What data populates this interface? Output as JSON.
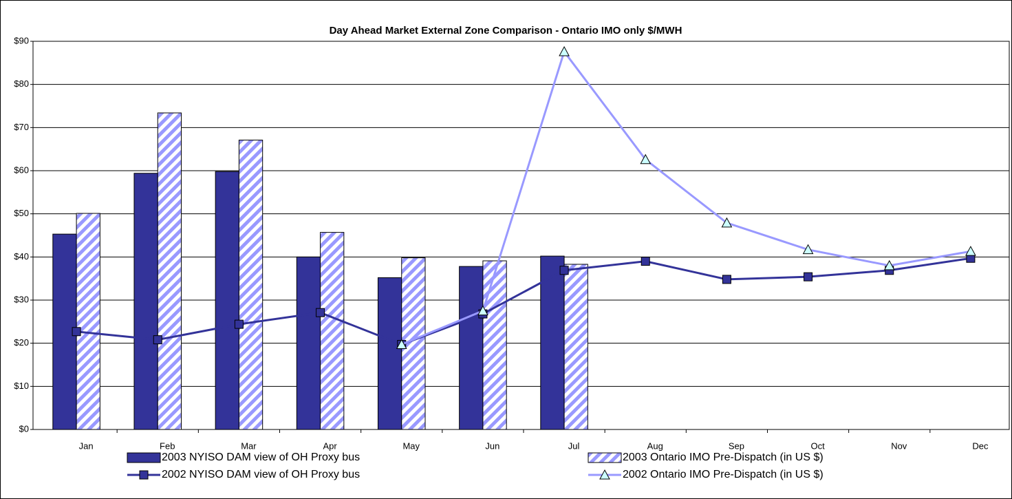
{
  "chart_data": {
    "type": "bar",
    "title": "Day Ahead Market External Zone Comparison - Ontario IMO only $/MWH",
    "categories": [
      "Jan",
      "Feb",
      "Mar",
      "Apr",
      "May",
      "Jun",
      "Jul",
      "Aug",
      "Sep",
      "Oct",
      "Nov",
      "Dec"
    ],
    "series": [
      {
        "name": "2003 NYISO DAM view of OH Proxy bus",
        "type": "bar",
        "color": "#333399",
        "values": [
          45.3,
          59.4,
          59.8,
          40.0,
          35.2,
          37.8,
          40.2,
          null,
          null,
          null,
          null,
          null
        ]
      },
      {
        "name": "2003 Ontario IMO Pre-Dispatch (in US $)",
        "type": "bar",
        "color": "#9999ff",
        "pattern": "hatched",
        "values": [
          50.1,
          73.4,
          67.1,
          45.7,
          39.8,
          39.1,
          38.3,
          null,
          null,
          null,
          null,
          null
        ]
      },
      {
        "name": "2002 NYISO DAM view of OH Proxy bus",
        "type": "line",
        "color": "#333399",
        "marker": "square",
        "marker_color": "#333399",
        "values": [
          22.7,
          20.8,
          24.4,
          27.1,
          19.7,
          26.8,
          36.9,
          39.0,
          34.8,
          35.4,
          36.9,
          39.7
        ]
      },
      {
        "name": "2002 Ontario IMO Pre-Dispatch (in US $)",
        "type": "line",
        "color": "#9999ff",
        "marker": "triangle",
        "marker_color": "#ccffff",
        "values": [
          null,
          null,
          null,
          null,
          19.7,
          27.5,
          87.6,
          62.6,
          47.9,
          41.7,
          38.0,
          41.3
        ]
      }
    ],
    "ylim": [
      0,
      90
    ],
    "yticks": [
      {
        "value": 0,
        "label": "$0"
      },
      {
        "value": 10,
        "label": "$10"
      },
      {
        "value": 20,
        "label": "$20"
      },
      {
        "value": 30,
        "label": "$30"
      },
      {
        "value": 40,
        "label": "$40"
      },
      {
        "value": 50,
        "label": "$50"
      },
      {
        "value": 60,
        "label": "$60"
      },
      {
        "value": 70,
        "label": "$70"
      },
      {
        "value": 80,
        "label": "$80"
      },
      {
        "value": 90,
        "label": "$90"
      }
    ],
    "grid": true,
    "legend": "bottom"
  }
}
